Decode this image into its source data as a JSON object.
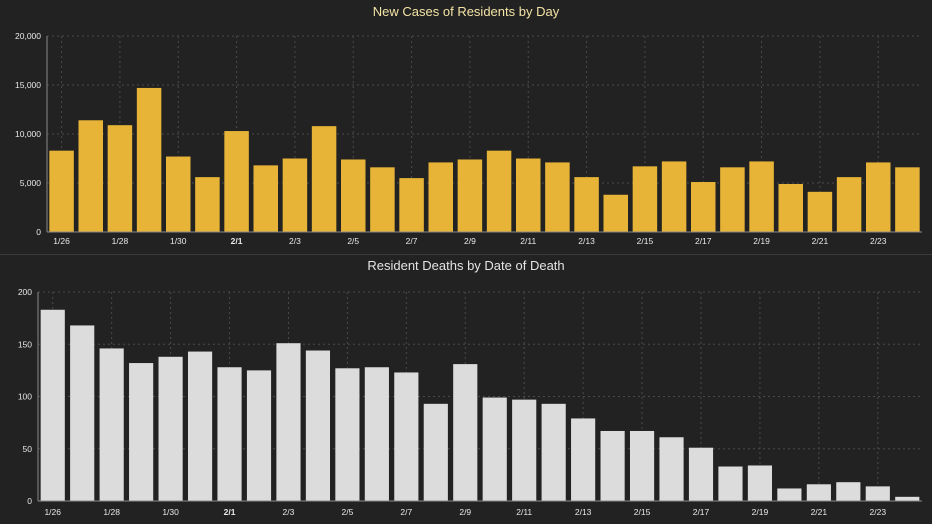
{
  "chart_data": [
    {
      "type": "bar",
      "title": "New Cases of Residents by Day",
      "xlabel": "",
      "ylabel": "",
      "ylim": [
        0,
        20000
      ],
      "yticks": [
        "0",
        "5,000",
        "10,000",
        "15,000",
        "20,000"
      ],
      "ytick_values": [
        0,
        5000,
        10000,
        15000,
        20000
      ],
      "grid": true,
      "bar_color": "#e8b437",
      "title_color": "#f3e3a5",
      "categories": [
        "1/26",
        "1/27",
        "1/28",
        "1/29",
        "1/30",
        "1/31",
        "2/1",
        "2/2",
        "2/3",
        "2/4",
        "2/5",
        "2/6",
        "2/7",
        "2/8",
        "2/9",
        "2/10",
        "2/11",
        "2/12",
        "2/13",
        "2/14",
        "2/15",
        "2/16",
        "2/17",
        "2/18",
        "2/19",
        "2/20",
        "2/21",
        "2/22",
        "2/23",
        "2/24"
      ],
      "xtick_labels": [
        "1/26",
        "1/28",
        "1/30",
        "2/1",
        "2/3",
        "2/5",
        "2/7",
        "2/9",
        "2/11",
        "2/13",
        "2/15",
        "2/17",
        "2/19",
        "2/21",
        "2/23"
      ],
      "values": [
        8300,
        11400,
        10900,
        14700,
        7700,
        5600,
        10300,
        6800,
        7500,
        10800,
        7400,
        6600,
        5500,
        7100,
        7400,
        8300,
        7500,
        7100,
        5600,
        3800,
        6700,
        7200,
        5100,
        6600,
        7200,
        4900,
        4100,
        5600,
        7100,
        6600
      ]
    },
    {
      "type": "bar",
      "title": "Resident Deaths by Date of Death",
      "xlabel": "",
      "ylabel": "",
      "ylim": [
        0,
        200
      ],
      "yticks": [
        "0",
        "50",
        "100",
        "150",
        "200"
      ],
      "ytick_values": [
        0,
        50,
        100,
        150,
        200
      ],
      "grid": true,
      "bar_color": "#dcdcdc",
      "title_color": "#e4e4e4",
      "categories": [
        "1/26",
        "1/27",
        "1/28",
        "1/29",
        "1/30",
        "1/31",
        "2/1",
        "2/2",
        "2/3",
        "2/4",
        "2/5",
        "2/6",
        "2/7",
        "2/8",
        "2/9",
        "2/10",
        "2/11",
        "2/12",
        "2/13",
        "2/14",
        "2/15",
        "2/16",
        "2/17",
        "2/18",
        "2/19",
        "2/20",
        "2/21",
        "2/22",
        "2/23",
        "2/24"
      ],
      "xtick_labels": [
        "1/26",
        "1/28",
        "1/30",
        "2/1",
        "2/3",
        "2/5",
        "2/7",
        "2/9",
        "2/11",
        "2/13",
        "2/15",
        "2/17",
        "2/19",
        "2/21",
        "2/23"
      ],
      "values": [
        183,
        168,
        146,
        132,
        138,
        143,
        128,
        125,
        151,
        144,
        127,
        128,
        123,
        93,
        131,
        99,
        97,
        93,
        79,
        67,
        67,
        61,
        51,
        33,
        34,
        12,
        16,
        18,
        14,
        4
      ]
    }
  ]
}
